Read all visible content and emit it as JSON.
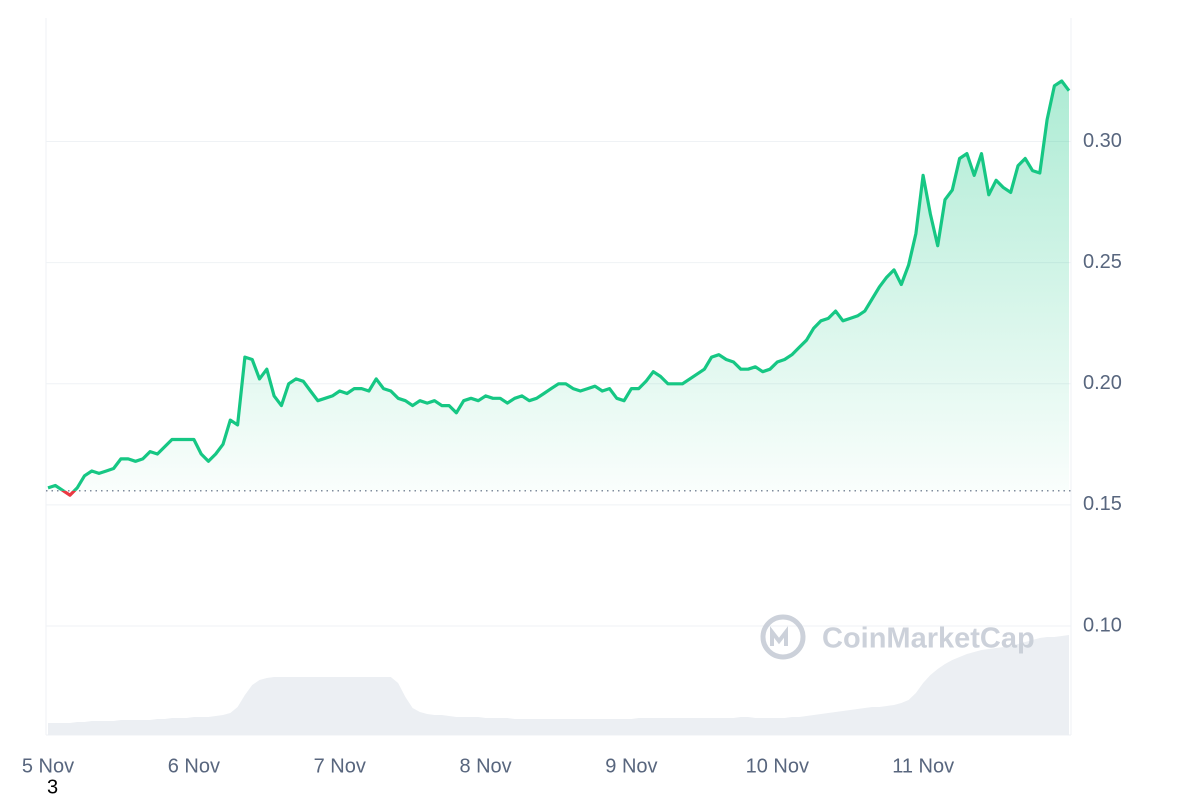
{
  "chart_data": {
    "type": "line",
    "categories": [
      "5 Nov",
      null,
      null,
      null,
      null,
      null,
      null,
      null,
      null,
      null,
      null,
      null,
      null,
      null,
      null,
      null,
      null,
      null,
      null,
      null,
      "6 Nov",
      null,
      null,
      null,
      null,
      null,
      null,
      null,
      null,
      null,
      null,
      null,
      null,
      null,
      null,
      null,
      null,
      null,
      null,
      null,
      "7 Nov",
      null,
      null,
      null,
      null,
      null,
      null,
      null,
      null,
      null,
      null,
      null,
      null,
      null,
      null,
      null,
      null,
      null,
      null,
      null,
      "8 Nov",
      null,
      null,
      null,
      null,
      null,
      null,
      null,
      null,
      null,
      null,
      null,
      null,
      null,
      null,
      null,
      null,
      null,
      null,
      null,
      "9 Nov",
      null,
      null,
      null,
      null,
      null,
      null,
      null,
      null,
      null,
      null,
      null,
      null,
      null,
      null,
      null,
      null,
      null,
      null,
      null,
      "10 Nov",
      null,
      null,
      null,
      null,
      null,
      null,
      null,
      null,
      null,
      null,
      null,
      null,
      null,
      null,
      null,
      null,
      null,
      null,
      null,
      "11 Nov",
      null,
      null,
      null,
      null,
      null,
      null,
      null,
      null,
      null,
      null,
      null,
      null,
      null,
      null,
      null,
      null,
      null,
      null,
      null,
      null
    ],
    "series": [
      {
        "color": "#16c784",
        "negative_color": "#ea3943",
        "values": [
          0.157,
          0.158,
          0.156,
          0.154,
          0.157,
          0.162,
          0.164,
          0.163,
          0.164,
          0.165,
          0.169,
          0.169,
          0.168,
          0.169,
          0.172,
          0.171,
          0.174,
          0.177,
          0.177,
          0.177,
          0.177,
          0.171,
          0.168,
          0.171,
          0.175,
          0.185,
          0.183,
          0.211,
          0.21,
          0.202,
          0.206,
          0.195,
          0.191,
          0.2,
          0.202,
          0.201,
          0.197,
          0.193,
          0.194,
          0.195,
          0.197,
          0.196,
          0.198,
          0.198,
          0.197,
          0.202,
          0.198,
          0.197,
          0.194,
          0.193,
          0.191,
          0.193,
          0.192,
          0.193,
          0.191,
          0.191,
          0.188,
          0.193,
          0.194,
          0.193,
          0.195,
          0.194,
          0.194,
          0.192,
          0.194,
          0.195,
          0.193,
          0.194,
          0.196,
          0.198,
          0.2,
          0.2,
          0.198,
          0.197,
          0.198,
          0.199,
          0.197,
          0.198,
          0.194,
          0.193,
          0.198,
          0.198,
          0.201,
          0.205,
          0.203,
          0.2,
          0.2,
          0.2,
          0.202,
          0.204,
          0.206,
          0.211,
          0.212,
          0.21,
          0.209,
          0.206,
          0.206,
          0.207,
          0.205,
          0.206,
          0.209,
          0.21,
          0.212,
          0.215,
          0.218,
          0.223,
          0.226,
          0.227,
          0.23,
          0.226,
          0.227,
          0.228,
          0.23,
          0.235,
          0.24,
          0.244,
          0.247,
          0.241,
          0.249,
          0.262,
          0.286,
          0.27,
          0.257,
          0.276,
          0.28,
          0.293,
          0.295,
          0.286,
          0.295,
          0.278,
          0.284,
          0.281,
          0.279,
          0.29,
          0.293,
          0.288,
          0.287,
          0.309,
          0.323,
          0.325,
          0.321
        ]
      }
    ],
    "volume": {
      "color": "#eceff3",
      "values": [
        12,
        12,
        12,
        12,
        13,
        13,
        14,
        14,
        14,
        14,
        15,
        15,
        15,
        15,
        15,
        16,
        16,
        17,
        17,
        17,
        18,
        18,
        18,
        19,
        20,
        22,
        28,
        40,
        50,
        55,
        57,
        58,
        58,
        58,
        58,
        58,
        58,
        58,
        58,
        58,
        58,
        58,
        58,
        58,
        58,
        58,
        58,
        58,
        52,
        38,
        27,
        23,
        21,
        20,
        20,
        19,
        18,
        18,
        18,
        18,
        17,
        17,
        17,
        17,
        16,
        16,
        16,
        16,
        16,
        16,
        16,
        16,
        16,
        16,
        16,
        16,
        16,
        16,
        16,
        16,
        16,
        17,
        17,
        17,
        17,
        17,
        17,
        17,
        17,
        17,
        17,
        17,
        17,
        17,
        17,
        18,
        18,
        17,
        17,
        17,
        17,
        17,
        18,
        18,
        19,
        20,
        21,
        22,
        23,
        24,
        25,
        26,
        27,
        28,
        28,
        29,
        30,
        32,
        35,
        42,
        52,
        60,
        66,
        71,
        75,
        78,
        81,
        83,
        85,
        86,
        87,
        88,
        89,
        91,
        93,
        95,
        97,
        98,
        98,
        99,
        100
      ]
    },
    "baseline": 0.1558,
    "ylim": [
      0.055,
      0.351
    ],
    "yticks": [
      {
        "value": 0.1,
        "label": "0.10"
      },
      0.15,
      {
        "value": 0.2,
        "label": "0.20"
      },
      0.25,
      {
        "value": 0.3,
        "label": "0.30"
      }
    ],
    "grid": true
  },
  "watermark": "CoinMarketCap",
  "footnote": "3"
}
